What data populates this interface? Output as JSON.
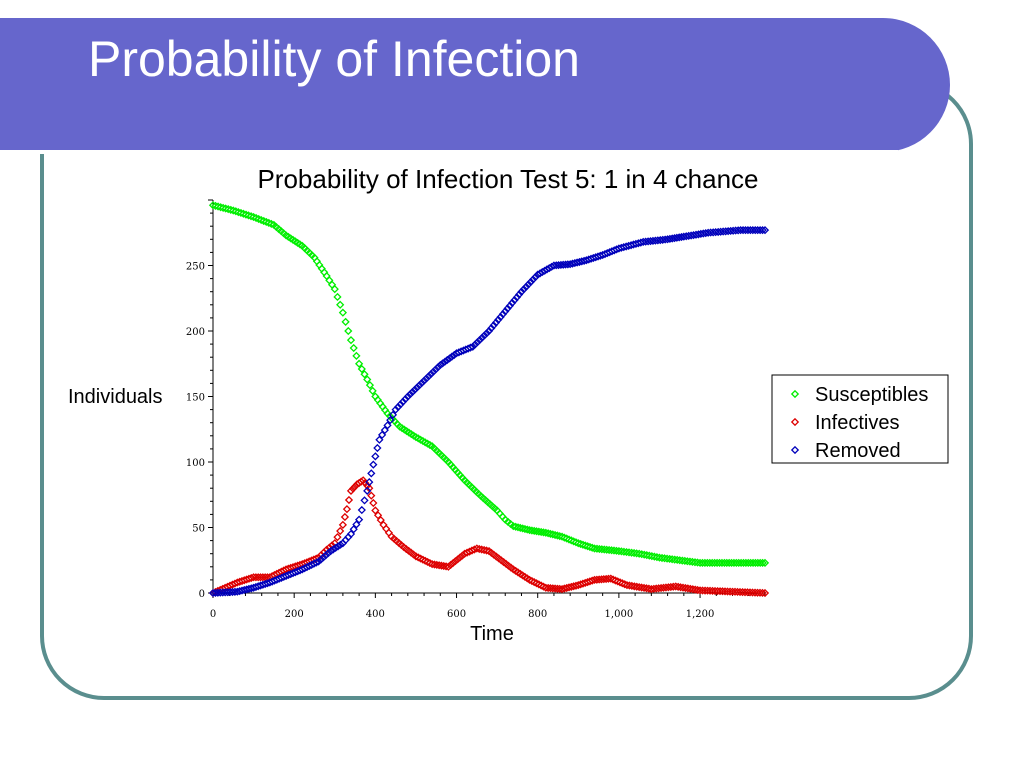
{
  "slide": {
    "title": "Probability of Infection"
  },
  "chart_data": {
    "type": "scatter",
    "title": "Probability of Infection Test 5:  1 in 4 chance",
    "xlabel": "Time",
    "ylabel": "Individuals",
    "xlim": [
      0,
      1360
    ],
    "ylim": [
      0,
      300
    ],
    "x_ticks": [
      0,
      200,
      400,
      600,
      800,
      1000,
      1200
    ],
    "x_tick_labels": [
      "0",
      "200",
      "400",
      "600",
      "800",
      "1,000",
      "1,200"
    ],
    "y_ticks": [
      0,
      50,
      100,
      150,
      200,
      250
    ],
    "y_tick_labels": [
      "0",
      "50",
      "100",
      "150",
      "200",
      "250"
    ],
    "grid": false,
    "legend_position": "right",
    "series": [
      {
        "name": "Susceptibles",
        "color": "#00ee00",
        "points": [
          [
            0,
            296
          ],
          [
            50,
            292
          ],
          [
            100,
            287
          ],
          [
            150,
            281
          ],
          [
            180,
            273
          ],
          [
            220,
            265
          ],
          [
            250,
            256
          ],
          [
            280,
            242
          ],
          [
            300,
            232
          ],
          [
            320,
            214
          ],
          [
            340,
            193
          ],
          [
            360,
            175
          ],
          [
            380,
            163
          ],
          [
            400,
            150
          ],
          [
            430,
            137
          ],
          [
            460,
            127
          ],
          [
            500,
            119
          ],
          [
            540,
            112
          ],
          [
            580,
            100
          ],
          [
            620,
            86
          ],
          [
            660,
            74
          ],
          [
            700,
            63
          ],
          [
            720,
            56
          ],
          [
            740,
            51
          ],
          [
            780,
            48
          ],
          [
            820,
            46
          ],
          [
            860,
            43
          ],
          [
            900,
            38
          ],
          [
            940,
            34
          ],
          [
            1000,
            32
          ],
          [
            1050,
            30
          ],
          [
            1100,
            27
          ],
          [
            1150,
            25
          ],
          [
            1200,
            23
          ],
          [
            1260,
            23
          ],
          [
            1360,
            23
          ]
        ]
      },
      {
        "name": "Infectives",
        "color": "#dd0000",
        "points": [
          [
            0,
            0
          ],
          [
            30,
            4
          ],
          [
            60,
            8
          ],
          [
            100,
            12
          ],
          [
            140,
            12
          ],
          [
            180,
            18
          ],
          [
            220,
            22
          ],
          [
            260,
            27
          ],
          [
            280,
            33
          ],
          [
            300,
            38
          ],
          [
            320,
            52
          ],
          [
            330,
            64
          ],
          [
            340,
            78
          ],
          [
            355,
            83
          ],
          [
            370,
            86
          ],
          [
            385,
            80
          ],
          [
            400,
            63
          ],
          [
            420,
            52
          ],
          [
            440,
            43
          ],
          [
            470,
            35
          ],
          [
            500,
            28
          ],
          [
            540,
            22
          ],
          [
            580,
            20
          ],
          [
            620,
            30
          ],
          [
            650,
            34
          ],
          [
            680,
            32
          ],
          [
            710,
            25
          ],
          [
            740,
            18
          ],
          [
            780,
            10
          ],
          [
            820,
            4
          ],
          [
            860,
            3
          ],
          [
            900,
            6
          ],
          [
            940,
            10
          ],
          [
            980,
            11
          ],
          [
            1020,
            6
          ],
          [
            1080,
            3
          ],
          [
            1140,
            5
          ],
          [
            1200,
            2
          ],
          [
            1280,
            1
          ],
          [
            1360,
            0
          ]
        ]
      },
      {
        "name": "Removed",
        "color": "#0000bb",
        "points": [
          [
            0,
            0
          ],
          [
            60,
            1
          ],
          [
            100,
            4
          ],
          [
            140,
            8
          ],
          [
            180,
            13
          ],
          [
            220,
            18
          ],
          [
            260,
            24
          ],
          [
            290,
            32
          ],
          [
            320,
            38
          ],
          [
            340,
            45
          ],
          [
            360,
            56
          ],
          [
            380,
            78
          ],
          [
            395,
            98
          ],
          [
            410,
            117
          ],
          [
            430,
            128
          ],
          [
            450,
            140
          ],
          [
            480,
            150
          ],
          [
            520,
            162
          ],
          [
            560,
            174
          ],
          [
            600,
            183
          ],
          [
            640,
            188
          ],
          [
            680,
            200
          ],
          [
            720,
            215
          ],
          [
            760,
            230
          ],
          [
            800,
            243
          ],
          [
            840,
            250
          ],
          [
            880,
            251
          ],
          [
            920,
            254
          ],
          [
            960,
            258
          ],
          [
            1000,
            263
          ],
          [
            1060,
            268
          ],
          [
            1120,
            270
          ],
          [
            1160,
            272
          ],
          [
            1220,
            275
          ],
          [
            1300,
            277
          ],
          [
            1360,
            277
          ]
        ]
      }
    ]
  }
}
